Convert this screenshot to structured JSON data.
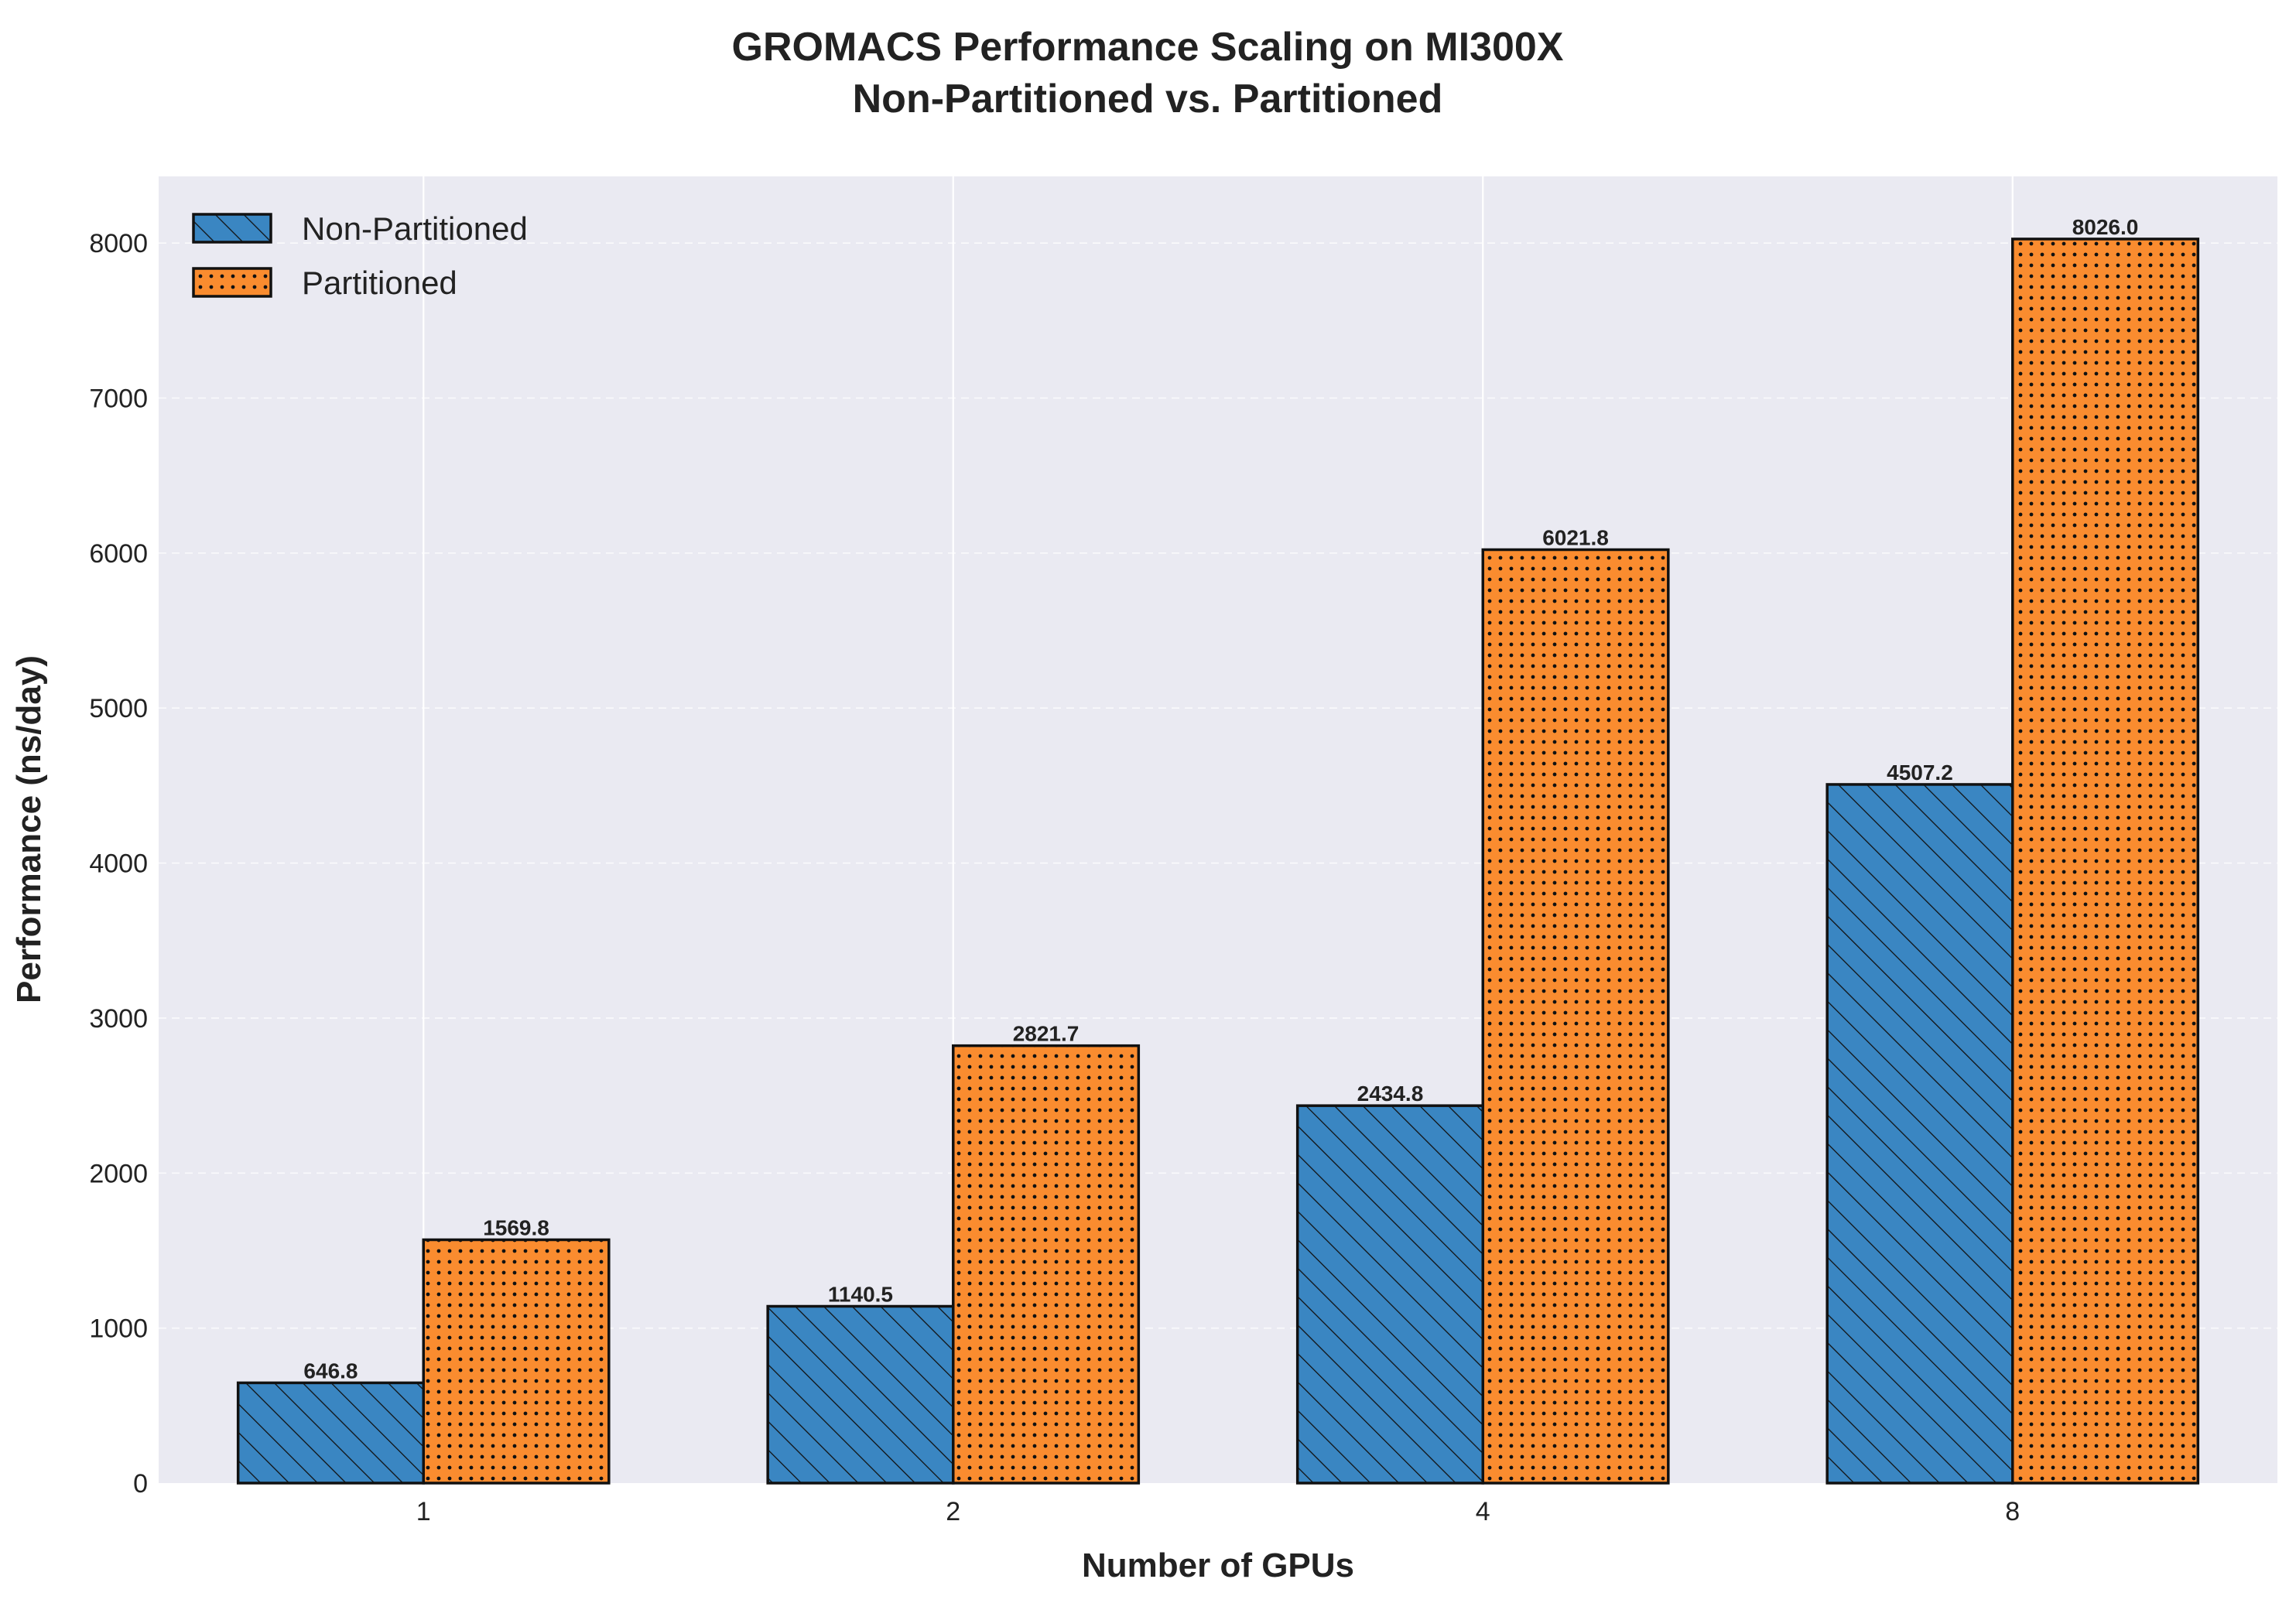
{
  "chart_data": {
    "type": "bar",
    "title": [
      "GROMACS Performance Scaling on MI300X",
      "Non-Partitioned vs. Partitioned"
    ],
    "xlabel": "Number of GPUs",
    "ylabel": "Performance (ns/day)",
    "categories": [
      "1",
      "2",
      "4",
      "8"
    ],
    "series": [
      {
        "name": "Non-Partitioned",
        "values": [
          646.8,
          1140.5,
          2434.8,
          4507.2
        ],
        "labels": [
          "646.8",
          "1140.5",
          "2434.8",
          "4507.2"
        ],
        "color": "#3a86c2",
        "pattern": "diagonal-hatch"
      },
      {
        "name": "Partitioned",
        "values": [
          1569.8,
          2821.7,
          6021.8,
          8026.0
        ],
        "labels": [
          "1569.8",
          "2821.7",
          "6021.8",
          "8026.0"
        ],
        "color": "#fa8c2f",
        "pattern": "dots"
      }
    ],
    "ylim": [
      0,
      8430
    ],
    "yticks": [
      0,
      1000,
      2000,
      3000,
      4000,
      5000,
      6000,
      7000,
      8000
    ],
    "ytick_labels": [
      "0",
      "1000",
      "2000",
      "3000",
      "4000",
      "5000",
      "6000",
      "7000",
      "8000"
    ],
    "legend_position": "top-left",
    "grid": true,
    "plot_background": "#eaeaf2",
    "gridline_color": "#ffffff"
  }
}
